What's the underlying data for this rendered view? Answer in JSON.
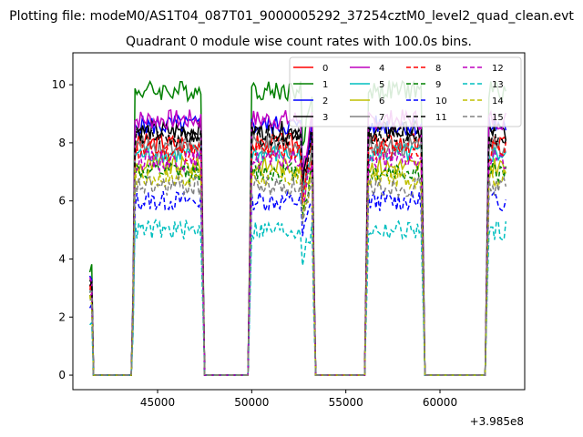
{
  "chart_data": {
    "type": "line",
    "suptitle": "Plotting file: modeM0/AS1T04_087T01_9000005292_37254cztM0_level2_quad_clean.evt",
    "title": "Quadrant 0 module wise count rates with 100.0s bins.",
    "xlabel": "",
    "ylabel": "",
    "offset_label": "+3.985e8",
    "xlim": [
      40500,
      64500
    ],
    "ylim": [
      -0.5,
      11.1
    ],
    "x_ticks": [
      45000,
      50000,
      55000,
      60000
    ],
    "x_tick_labels": [
      "45000",
      "50000",
      "55000",
      "60000"
    ],
    "y_ticks": [
      0,
      2,
      4,
      6,
      8,
      10
    ],
    "y_tick_labels": [
      "0",
      "2",
      "4",
      "6",
      "8",
      "10"
    ],
    "grid": false,
    "legend": {
      "placement": "top-right",
      "columns": 4
    },
    "bin_seconds": 100,
    "profile": {
      "x": [
        41400,
        41500,
        41600,
        43600,
        43700,
        43800,
        47300,
        47400,
        47500,
        49800,
        49900,
        50000,
        52600,
        52700,
        53200,
        53300,
        53400,
        56000,
        56100,
        56200,
        59000,
        59100,
        59200,
        62400,
        62500,
        62600,
        63500
      ],
      "scale": [
        0.35,
        0.1,
        0,
        0,
        0.3,
        1,
        1,
        0.5,
        0,
        0,
        0.5,
        1,
        1,
        0.8,
        1,
        0.4,
        0,
        0,
        0.5,
        1,
        1,
        0.5,
        0,
        0,
        0.5,
        1,
        1
      ]
    },
    "series": [
      {
        "name": "0",
        "color": "#ff0000",
        "dash": "solid",
        "level": 8.0
      },
      {
        "name": "1",
        "color": "#008000",
        "dash": "solid",
        "level": 9.8
      },
      {
        "name": "2",
        "color": "#0000ff",
        "dash": "solid",
        "level": 8.6
      },
      {
        "name": "3",
        "color": "#000000",
        "dash": "solid",
        "level": 8.4
      },
      {
        "name": "4",
        "color": "#bf00bf",
        "dash": "solid",
        "level": 8.8
      },
      {
        "name": "5",
        "color": "#00bfbf",
        "dash": "solid",
        "level": 7.6
      },
      {
        "name": "6",
        "color": "#bfbf00",
        "dash": "solid",
        "level": 7.2
      },
      {
        "name": "7",
        "color": "#808080",
        "dash": "solid",
        "level": 7.9
      },
      {
        "name": "8",
        "color": "#ff0000",
        "dash": "dashed",
        "level": 7.7
      },
      {
        "name": "9",
        "color": "#008000",
        "dash": "dashed",
        "level": 7.0
      },
      {
        "name": "10",
        "color": "#0000ff",
        "dash": "dashed",
        "level": 6.0
      },
      {
        "name": "11",
        "color": "#000000",
        "dash": "dashed",
        "level": 8.2
      },
      {
        "name": "12",
        "color": "#bf00bf",
        "dash": "dashed",
        "level": 7.4
      },
      {
        "name": "13",
        "color": "#00bfbf",
        "dash": "dashed",
        "level": 5.0
      },
      {
        "name": "14",
        "color": "#bfbf00",
        "dash": "dashed",
        "level": 6.8
      },
      {
        "name": "15",
        "color": "#808080",
        "dash": "dashed",
        "level": 6.5
      }
    ]
  }
}
